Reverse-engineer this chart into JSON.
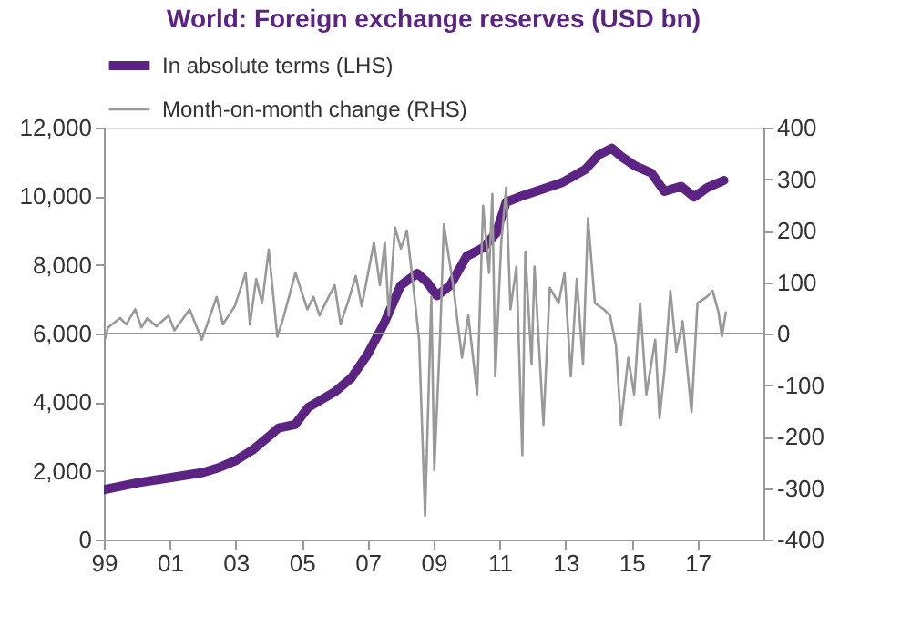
{
  "chart_data": {
    "type": "line",
    "title": "World: Foreign exchange reserves (USD bn)",
    "xlim": [
      1999,
      2019
    ],
    "xticks": [
      {
        "value": 1999,
        "label": "99"
      },
      {
        "value": 2001,
        "label": "01"
      },
      {
        "value": 2003,
        "label": "03"
      },
      {
        "value": 2005,
        "label": "05"
      },
      {
        "value": 2007,
        "label": "07"
      },
      {
        "value": 2009,
        "label": "09"
      },
      {
        "value": 2011,
        "label": "11"
      },
      {
        "value": 2013,
        "label": "13"
      },
      {
        "value": 2015,
        "label": "15"
      },
      {
        "value": 2017,
        "label": "17"
      }
    ],
    "ylim": [
      0,
      12000
    ],
    "yticks": [
      0,
      {
        "value": 2000,
        "label": "2,000"
      },
      {
        "value": 4000,
        "label": "4,000"
      },
      {
        "value": 6000,
        "label": "6,000"
      },
      {
        "value": 8000,
        "label": "8,000"
      },
      {
        "value": 10000,
        "label": "10,000"
      },
      {
        "value": 12000,
        "label": "12,000"
      }
    ],
    "y2lim": [
      -400,
      400
    ],
    "y2ticks": [
      -400,
      -300,
      -200,
      -100,
      0,
      100,
      200,
      300,
      400
    ],
    "legend": "top",
    "grid": false,
    "ref_lines": [
      {
        "axis": "y2",
        "value": 0,
        "color": "#999999"
      }
    ],
    "series": [
      {
        "name": "In absolute terms (LHS)",
        "color": "#5b2482",
        "axis": "y",
        "x": [
          1999.0,
          2000.0,
          2001.0,
          2002.0,
          2002.5,
          2003.0,
          2003.5,
          2004.0,
          2004.3,
          2004.8,
          2005.2,
          2006.0,
          2006.5,
          2007.0,
          2007.5,
          2008.0,
          2008.5,
          2008.8,
          2009.1,
          2009.5,
          2010.0,
          2010.5,
          2010.9,
          2011.2,
          2011.6,
          2012.1,
          2012.9,
          2013.6,
          2014.0,
          2014.4,
          2014.7,
          2015.1,
          2015.6,
          2016.0,
          2016.5,
          2016.9,
          2017.3,
          2017.8
        ],
        "values": [
          1450,
          1650,
          1800,
          1950,
          2100,
          2300,
          2600,
          3000,
          3250,
          3350,
          3850,
          4300,
          4700,
          5400,
          6300,
          7400,
          7750,
          7500,
          7100,
          7400,
          8250,
          8500,
          8930,
          9830,
          9980,
          10140,
          10400,
          10780,
          11200,
          11400,
          11150,
          10890,
          10680,
          10140,
          10290,
          9980,
          10250,
          10460
        ]
      },
      {
        "name": "Month-on-month change (RHS)",
        "color": "#999999",
        "axis": "y2",
        "x": [
          1999.0,
          1999.13,
          1999.49,
          1999.68,
          1999.95,
          2000.14,
          2000.32,
          2000.59,
          2000.96,
          2001.14,
          2001.6,
          2001.97,
          2002.42,
          2002.61,
          2002.97,
          2003.3,
          2003.43,
          2003.62,
          2003.8,
          2004.0,
          2004.26,
          2004.44,
          2004.81,
          2005.17,
          2005.36,
          2005.54,
          2005.72,
          2006.0,
          2006.18,
          2006.45,
          2006.64,
          2006.82,
          2007.19,
          2007.37,
          2007.52,
          2007.64,
          2007.83,
          2008.01,
          2008.19,
          2008.38,
          2008.56,
          2008.74,
          2008.93,
          2009.02,
          2009.2,
          2009.31,
          2009.59,
          2009.86,
          2010.05,
          2010.32,
          2010.5,
          2010.68,
          2010.78,
          2010.87,
          2011.05,
          2011.2,
          2011.33,
          2011.51,
          2011.69,
          2011.78,
          2011.97,
          2012.06,
          2012.33,
          2012.52,
          2012.79,
          2012.97,
          2013.16,
          2013.34,
          2013.53,
          2013.68,
          2013.89,
          2014.16,
          2014.35,
          2014.53,
          2014.68,
          2014.9,
          2015.08,
          2015.26,
          2015.45,
          2015.72,
          2015.85,
          2016.0,
          2016.18,
          2016.36,
          2016.55,
          2016.82,
          2017.0,
          2017.28,
          2017.46,
          2017.64,
          2017.74,
          2017.86
        ],
        "values": [
          -18,
          12,
          30,
          18,
          47,
          12,
          30,
          14,
          35,
          6,
          47,
          -12,
          71,
          18,
          53,
          118,
          18,
          106,
          59,
          163,
          -6,
          30,
          118,
          47,
          71,
          35,
          59,
          94,
          18,
          71,
          112,
          53,
          177,
          94,
          177,
          35,
          206,
          165,
          200,
          94,
          -12,
          -354,
          71,
          -265,
          0,
          212,
          94,
          -47,
          35,
          -118,
          248,
          118,
          271,
          -83,
          177,
          283,
          47,
          130,
          -236,
          159,
          -59,
          130,
          -177,
          89,
          59,
          118,
          -83,
          106,
          -59,
          224,
          59,
          47,
          35,
          -24,
          -177,
          -47,
          -118,
          59,
          -118,
          -12,
          -165,
          -71,
          83,
          -35,
          24,
          -153,
          59,
          71,
          83,
          41,
          -6,
          41
        ]
      }
    ]
  }
}
